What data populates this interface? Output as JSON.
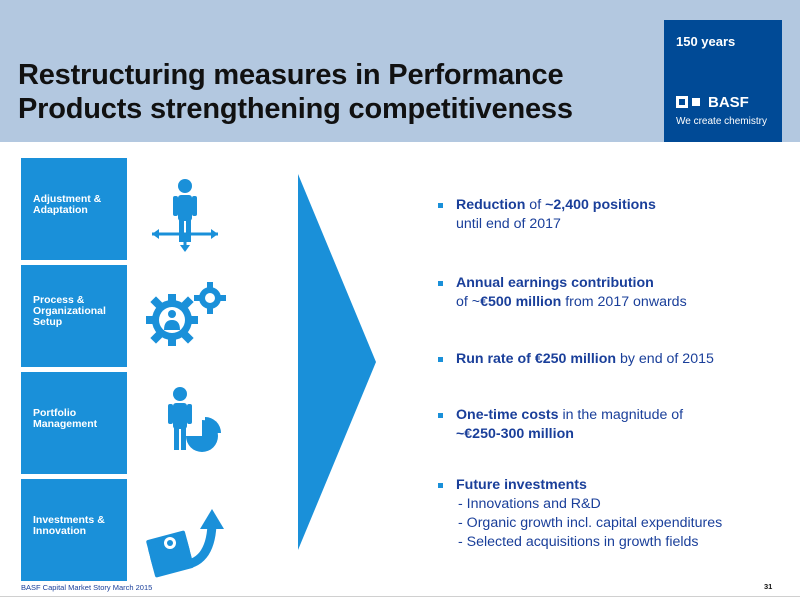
{
  "header": {
    "title_line1": "Restructuring measures in Performance",
    "title_line2": "Products strengthening competitiveness"
  },
  "brand": {
    "years": "150 years",
    "logo_text": "BASF",
    "tagline": "We create chemistry",
    "color": "#004a96"
  },
  "tiles": [
    {
      "line1": "Adjustment &",
      "line2": "Adaptation",
      "line3": "",
      "icon": "person-arrows-icon"
    },
    {
      "line1": "Process &",
      "line2": "Organizational",
      "line3": "Setup",
      "icon": "gears-person-icon"
    },
    {
      "line1": "Portfolio",
      "line2": "Management",
      "line3": "",
      "icon": "person-pie-chart-icon"
    },
    {
      "line1": "Investments &",
      "line2": "Innovation",
      "line3": "",
      "icon": "money-growth-arrow-icon"
    }
  ],
  "bullets": {
    "b1": {
      "bold1": "Reduction",
      "text1": " of  ",
      "bold2": "~2,400 positions",
      "line2": "until end of 2017"
    },
    "b2": {
      "bold1": "Annual earnings contribution",
      "text_pre": "of ~",
      "bold2": "€500 million",
      "text_post": " from 2017 onwards"
    },
    "b3": {
      "bold1": "Run rate of €250 million",
      "text1": " by end of 2015"
    },
    "b4": {
      "bold1": "One-time costs",
      "text1": " in the magnitude of",
      "bold2": "~€250-300 million"
    },
    "b5": {
      "bold1": "Future investments",
      "sub1": "- Innovations and R&D",
      "sub2": "- Organic growth incl. capital expenditures",
      "sub3": "- Selected acquisitions in growth fields"
    }
  },
  "footer": {
    "text": "BASF Capital Market Story March 2015",
    "page": "31"
  },
  "colors": {
    "header_bg": "#b3c8e0",
    "tile_bg": "#1a90d9",
    "arrow": "#1a90d9",
    "text_blue": "#1a3f9a"
  }
}
